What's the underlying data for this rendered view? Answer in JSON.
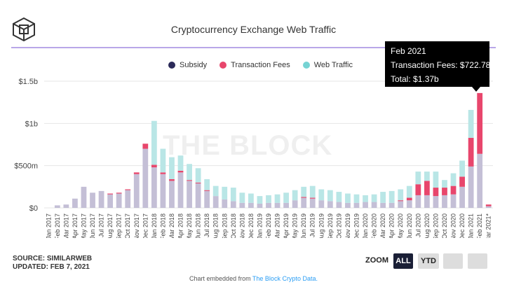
{
  "title": "Cryptocurrency Exchange Web Traffic",
  "watermark": "THE BLOCK",
  "legend": [
    {
      "label": "Subsidy",
      "color": "#2b2a59"
    },
    {
      "label": "Transaction Fees",
      "color": "#e8466c"
    },
    {
      "label": "Web Traffic",
      "color": "#76d3d3"
    }
  ],
  "tooltip": {
    "line1": "Feb 2021",
    "line2": "Transaction Fees: $722.78m",
    "line3": "Total: $1.37b"
  },
  "source_line": "SOURCE: SIMILARWEB",
  "updated_line": "UPDATED: FEB 7, 2021",
  "footer": {
    "text": "Chart embedded from ",
    "link": "The Block Crypto Data."
  },
  "zoom": {
    "label": "ZOOM",
    "all": "ALL",
    "ytd": "YTD"
  },
  "chart_data": {
    "type": "bar",
    "stacked": true,
    "title": "Cryptocurrency Exchange Web Traffic",
    "y_ticks": [
      "$0",
      "$500m",
      "$1b",
      "$1.5b"
    ],
    "ylim": [
      0,
      1.5
    ],
    "categories": [
      "Jan 2017",
      "Feb 2017",
      "Mar 2017",
      "Apr 2017",
      "May 2017",
      "Jun 2017",
      "Jul 2017",
      "Aug 2017",
      "Sep 2017",
      "Oct 2017",
      "Nov 2017",
      "Dec 2017",
      "Jan 2018",
      "Feb 2018",
      "Mar 2018",
      "Apr 2018",
      "May 2018",
      "Jun 2018",
      "Jul 2018",
      "Aug 2018",
      "Sep 2018",
      "Oct 2018",
      "Nov 2018",
      "Dec 2018",
      "Jan 2019",
      "Feb 2019",
      "Mar 2019",
      "Apr 2019",
      "May 2019",
      "Jun 2019",
      "Jul 2019",
      "Aug 2019",
      "Sep 2019",
      "Oct 2019",
      "Nov 2019",
      "Dec 2019",
      "Jan 2020",
      "Feb 2020",
      "Mar 2020",
      "Apr 2020",
      "May 2020",
      "Jun 2020",
      "Jul 2020",
      "Aug 2020",
      "Sep 2020",
      "Oct 2020",
      "Nov 2020",
      "Dec 2020",
      "Jan 2021",
      "Feb 2021",
      "Mar 2021*"
    ],
    "series": [
      {
        "name": "Subsidy",
        "color": "#c4bfd6",
        "values": [
          0,
          0.03,
          0.04,
          0.11,
          0.25,
          0.18,
          0.2,
          0.16,
          0.17,
          0.21,
          0.4,
          0.7,
          0.48,
          0.4,
          0.32,
          0.42,
          0.32,
          0.29,
          0.2,
          0.14,
          0.1,
          0.08,
          0.06,
          0.06,
          0.05,
          0.06,
          0.06,
          0.06,
          0.09,
          0.12,
          0.11,
          0.09,
          0.08,
          0.07,
          0.06,
          0.06,
          0.07,
          0.07,
          0.06,
          0.06,
          0.08,
          0.09,
          0.15,
          0.15,
          0.14,
          0.15,
          0.16,
          0.25,
          0.49,
          0.64,
          0.02
        ]
      },
      {
        "name": "Transaction Fees",
        "color": "#e8466c",
        "values": [
          0,
          0,
          0,
          0,
          0,
          0,
          0,
          0.01,
          0.01,
          0.01,
          0.02,
          0.06,
          0.03,
          0.02,
          0.02,
          0.02,
          0.01,
          0.01,
          0.01,
          0,
          0,
          0,
          0,
          0,
          0,
          0,
          0,
          0,
          0,
          0.01,
          0.01,
          0,
          0,
          0,
          0,
          0,
          0,
          0,
          0,
          0,
          0.01,
          0.03,
          0.13,
          0.17,
          0.1,
          0.09,
          0.1,
          0.12,
          0.34,
          0.72,
          0.02
        ]
      },
      {
        "name": "Web Traffic",
        "color": "#b9e6e6",
        "values": [
          0,
          0,
          0,
          0,
          0,
          0,
          0,
          0,
          0,
          0,
          0,
          0,
          0.52,
          0.28,
          0.26,
          0.18,
          0.19,
          0.17,
          0.13,
          0.12,
          0.15,
          0.16,
          0.12,
          0.11,
          0.09,
          0.09,
          0.1,
          0.12,
          0.12,
          0.12,
          0.14,
          0.13,
          0.13,
          0.12,
          0.11,
          0.1,
          0.08,
          0.09,
          0.13,
          0.14,
          0.13,
          0.14,
          0.15,
          0.11,
          0.19,
          0.09,
          0.15,
          0.19,
          0.33,
          0,
          0
        ]
      }
    ]
  }
}
